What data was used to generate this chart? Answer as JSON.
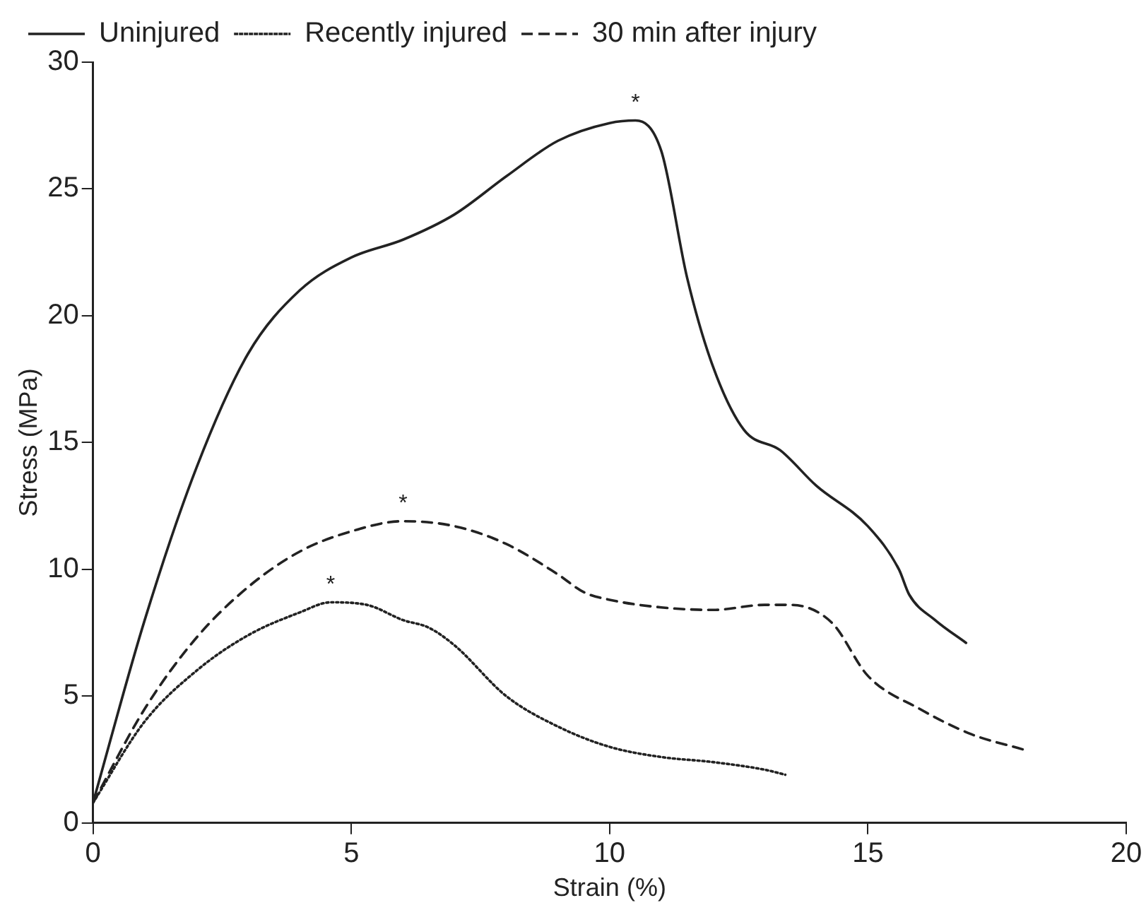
{
  "chart_data": {
    "type": "line",
    "xlabel": "Strain (%)",
    "ylabel": "Stress (MPa)",
    "xlim": [
      0,
      20
    ],
    "xticks": [
      0,
      5,
      10,
      15,
      20
    ],
    "ylim": [
      0,
      30
    ],
    "yticks": [
      0,
      5,
      10,
      15,
      20,
      25,
      30
    ],
    "grid": false,
    "legend": "top left",
    "marker": "none",
    "series": [
      {
        "name": "Uninjured",
        "color": "#222222",
        "line_style": "solid",
        "x": [
          0,
          1,
          2,
          3,
          4,
          5,
          6,
          7,
          8,
          9,
          10,
          10.5,
          11,
          11.5,
          12,
          12.6,
          13.3,
          14,
          15,
          15.6,
          15.8,
          16.3,
          16.9
        ],
        "values": [
          0.8,
          8,
          14,
          18.5,
          21,
          22.3,
          23,
          24,
          25.5,
          26.9,
          27.6,
          27.7,
          26.5,
          21.5,
          18,
          15.5,
          14.7,
          13.3,
          11.7,
          10,
          9,
          8,
          7.1
        ]
      },
      {
        "name": "Recently injured",
        "color": "#222222",
        "line_style": "dotted",
        "x": [
          0,
          1,
          2,
          3,
          4,
          4.6,
          5.3,
          6,
          6.5,
          7,
          8,
          9,
          10,
          11,
          12,
          13,
          13.4
        ],
        "values": [
          0.8,
          4,
          6,
          7.4,
          8.3,
          8.7,
          8.6,
          8,
          7.7,
          7,
          5,
          3.8,
          3,
          2.6,
          2.4,
          2.1,
          1.9
        ]
      },
      {
        "name": "30 min after injury",
        "color": "#222222",
        "line_style": "dashed",
        "x": [
          0,
          1,
          2,
          3,
          4,
          5,
          6,
          7,
          8,
          9,
          9.5,
          10,
          11,
          12,
          13,
          13.5,
          14.3,
          15,
          16,
          17,
          18
        ],
        "values": [
          0.8,
          4.5,
          7.3,
          9.3,
          10.7,
          11.5,
          11.9,
          11.7,
          11,
          9.8,
          9.1,
          8.8,
          8.5,
          8.4,
          8.6,
          8.6,
          7.9,
          5.8,
          4.5,
          3.5,
          2.9
        ]
      }
    ],
    "annotations": [
      {
        "text": "*",
        "x": 10.5,
        "y": 27.7
      },
      {
        "text": "*",
        "x": 6,
        "y": 11.9
      },
      {
        "text": "*",
        "x": 4.6,
        "y": 8.7
      }
    ]
  }
}
